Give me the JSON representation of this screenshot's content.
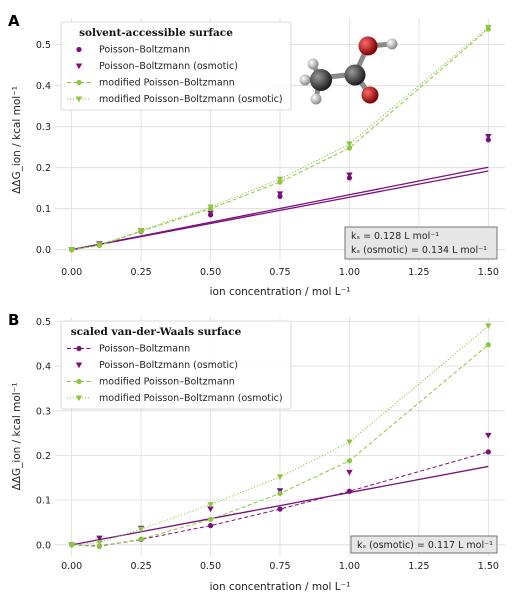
{
  "colors": {
    "purple": "#7b0f7e",
    "green": "#8cc63f",
    "grid": "#dcdcdc",
    "annotation_bg": "#e6e6e6"
  },
  "chart_data": [
    {
      "panel": "A",
      "type": "line",
      "legend_title": "solvent-accessible surface",
      "legend_placement": "top-left",
      "xlabel": "ion concentration / mol L⁻¹",
      "ylabel": "ΔΔG_ion / kcal mol⁻¹",
      "xlim": [
        -0.06,
        1.56
      ],
      "ylim": [
        -0.03,
        0.565
      ],
      "xticks": [
        0.0,
        0.25,
        0.5,
        0.75,
        1.0,
        1.25,
        1.5
      ],
      "xtick_labels": [
        "0.00",
        "0.25",
        "0.50",
        "0.75",
        "1.00",
        "1.25",
        "1.50"
      ],
      "yticks": [
        0.0,
        0.1,
        0.2,
        0.3,
        0.4,
        0.5
      ],
      "ytick_labels": [
        "0.0",
        "0.1",
        "0.2",
        "0.3",
        "0.4",
        "0.5"
      ],
      "grid": true,
      "annotation": [
        "kₛ = 0.128 L mol⁻¹",
        "kₛ (osmotic) = 0.134 L mol⁻¹"
      ],
      "has_molecule_image": true,
      "series": [
        {
          "name": "Poisson–Boltzmann",
          "color": "#7b0f7e",
          "marker": "circle",
          "line": "solid",
          "line_kind": "fit",
          "x": [
            0,
            0.1,
            0.25,
            0.5,
            0.75,
            1.0,
            1.5
          ],
          "y": [
            0.0,
            0.013,
            0.044,
            0.085,
            0.13,
            0.175,
            0.268
          ],
          "fit_y": [
            0.0,
            0.0128,
            0.032,
            0.064,
            0.096,
            0.128,
            0.192
          ]
        },
        {
          "name": "Poisson–Boltzmann (osmotic)",
          "color": "#7b0f7e",
          "marker": "triangle-down",
          "line": "solid",
          "line_kind": "fit",
          "x": [
            0,
            0.1,
            0.25,
            0.5,
            0.75,
            1.0,
            1.5
          ],
          "y": [
            0.0,
            0.014,
            0.046,
            0.089,
            0.136,
            0.182,
            0.276
          ],
          "fit_y": [
            0.0,
            0.0134,
            0.0335,
            0.067,
            0.1005,
            0.134,
            0.201
          ]
        },
        {
          "name": "modified Poisson–Boltzmann",
          "color": "#8cc63f",
          "marker": "circle",
          "line": "dashed",
          "line_kind": "connect",
          "x": [
            0,
            0.1,
            0.25,
            0.5,
            0.75,
            1.0,
            1.5
          ],
          "y": [
            0.0,
            0.01,
            0.045,
            0.1,
            0.165,
            0.248,
            0.538
          ]
        },
        {
          "name": "modified Poisson–Boltzmann (osmotic)",
          "color": "#8cc63f",
          "marker": "triangle-down",
          "line": "dotted",
          "line_kind": "connect",
          "x": [
            0,
            0.1,
            0.25,
            0.5,
            0.75,
            1.0,
            1.5
          ],
          "y": [
            0.0,
            0.012,
            0.047,
            0.104,
            0.172,
            0.258,
            0.542
          ]
        }
      ]
    },
    {
      "panel": "B",
      "type": "line",
      "legend_title": "scaled van-der-Waals surface",
      "legend_placement": "top-left",
      "xlabel": "ion concentration / mol L⁻¹",
      "ylabel": "ΔΔG_ion / kcal mol⁻¹",
      "xlim": [
        -0.06,
        1.56
      ],
      "ylim": [
        -0.025,
        0.51
      ],
      "xticks": [
        0.0,
        0.25,
        0.5,
        0.75,
        1.0,
        1.25,
        1.5
      ],
      "xtick_labels": [
        "0.00",
        "0.25",
        "0.50",
        "0.75",
        "1.00",
        "1.25",
        "1.50"
      ],
      "yticks": [
        0.0,
        0.1,
        0.2,
        0.3,
        0.4,
        0.5
      ],
      "ytick_labels": [
        "0.0",
        "0.1",
        "0.2",
        "0.3",
        "0.4",
        "0.5"
      ],
      "grid": true,
      "annotation": [
        "kₛ (osmotic) = 0.117 L mol⁻¹"
      ],
      "has_molecule_image": false,
      "series": [
        {
          "name": "Poisson–Boltzmann",
          "color": "#7b0f7e",
          "marker": "circle",
          "line": "dashed",
          "line_kind": "connect",
          "x": [
            0,
            0.1,
            0.25,
            0.5,
            0.75,
            1.0,
            1.5
          ],
          "y": [
            0.0,
            -0.003,
            0.012,
            0.043,
            0.08,
            0.12,
            0.208
          ]
        },
        {
          "name": "Poisson–Boltzmann (osmotic)",
          "color": "#7b0f7e",
          "marker": "triangle-down",
          "line": "solid",
          "line_kind": "fit",
          "x": [
            0,
            0.1,
            0.25,
            0.5,
            0.75,
            1.0,
            1.5
          ],
          "y": [
            0.0,
            0.015,
            0.037,
            0.08,
            0.121,
            0.162,
            0.245
          ],
          "fit_y": [
            0.0,
            0.0117,
            0.02925,
            0.0585,
            0.08775,
            0.117,
            0.1755
          ]
        },
        {
          "name": "modified Poisson–Boltzmann",
          "color": "#8cc63f",
          "marker": "circle",
          "line": "dashed",
          "line_kind": "connect",
          "x": [
            0,
            0.1,
            0.25,
            0.5,
            0.75,
            1.0,
            1.5
          ],
          "y": [
            0.0,
            -0.004,
            0.013,
            0.057,
            0.115,
            0.188,
            0.448
          ]
        },
        {
          "name": "modified Poisson–Boltzmann (osmotic)",
          "color": "#8cc63f",
          "marker": "triangle-down",
          "line": "dotted",
          "line_kind": "connect",
          "x": [
            0,
            0.1,
            0.25,
            0.5,
            0.75,
            1.0,
            1.5
          ],
          "y": [
            0.0,
            0.005,
            0.035,
            0.09,
            0.152,
            0.23,
            0.49
          ]
        }
      ]
    }
  ]
}
